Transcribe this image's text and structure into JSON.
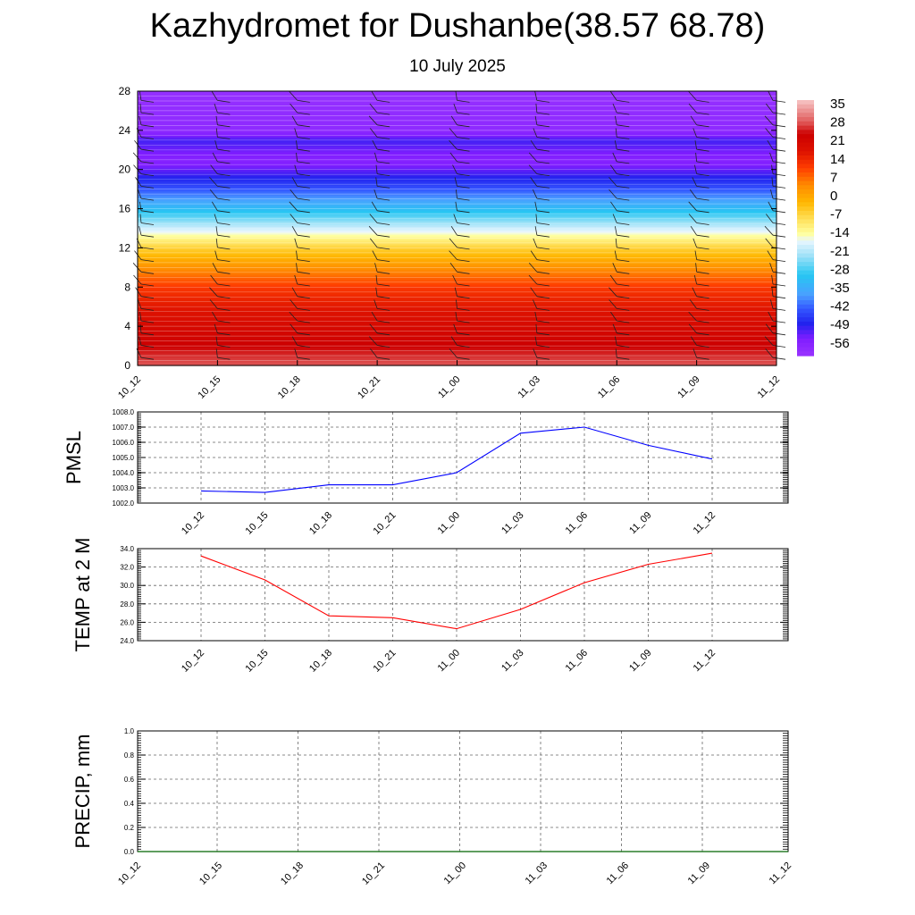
{
  "header": {
    "title": "Kazhydromet for Dushanbe(38.57 68.78)",
    "subtitle": "10 July 2025"
  },
  "chart_data": [
    {
      "type": "heatmap",
      "name": "temperature-cross-section",
      "xlabel": "",
      "ylabel": "",
      "x_ticks": [
        "10_12",
        "10_15",
        "10_18",
        "10_21",
        "11_00",
        "11_03",
        "11_06",
        "11_09",
        "11_12"
      ],
      "y_ticks": [
        "0",
        "4",
        "8",
        "12",
        "16",
        "20",
        "24",
        "28"
      ],
      "ylim": [
        0,
        28
      ],
      "colorbar": {
        "labels": [
          "35",
          "28",
          "21",
          "14",
          "7",
          "0",
          "-7",
          "-14",
          "-21",
          "-28",
          "-35",
          "-42",
          "-49",
          "-56"
        ],
        "range": [
          -63,
          42
        ]
      },
      "profile": {
        "heights": [
          0,
          2,
          4,
          6,
          8,
          10,
          12,
          13,
          14,
          16,
          18,
          20,
          21,
          22,
          23,
          24,
          28
        ],
        "temps": [
          33,
          28,
          24,
          20,
          15,
          6,
          -4,
          -11,
          -18,
          -32,
          -44,
          -54,
          -58,
          -55,
          -52,
          -60,
          -62
        ]
      },
      "wind_barbs": true
    },
    {
      "type": "line",
      "name": "pmsl",
      "ylabel": "PMSL",
      "ylim": [
        1002.0,
        1008.0
      ],
      "y_ticks": [
        "1002.0",
        "1003.0",
        "1004.0",
        "1005.0",
        "1006.0",
        "1007.0",
        "1008.0"
      ],
      "categories": [
        "10_12",
        "10_15",
        "10_18",
        "10_21",
        "11_00",
        "11_03",
        "11_06",
        "11_09",
        "11_12"
      ],
      "values": [
        1002.8,
        1002.7,
        1003.2,
        1003.2,
        1004.0,
        1006.6,
        1007.0,
        1005.8,
        1004.9
      ],
      "color": "#0000ff"
    },
    {
      "type": "line",
      "name": "temp-2m",
      "ylabel": "TEMP at 2 M",
      "ylim": [
        24.0,
        34.0
      ],
      "y_ticks": [
        "24.0",
        "26.0",
        "28.0",
        "30.0",
        "32.0",
        "34.0"
      ],
      "categories": [
        "10_12",
        "10_15",
        "10_18",
        "10_21",
        "11_00",
        "11_03",
        "11_06",
        "11_09",
        "11_12"
      ],
      "values": [
        33.2,
        30.6,
        26.7,
        26.5,
        25.3,
        27.4,
        30.3,
        32.3,
        33.5
      ],
      "color": "#ff0000"
    },
    {
      "type": "line",
      "name": "precip",
      "ylabel": "PRECIP, mm",
      "ylim": [
        0.0,
        1.0
      ],
      "y_ticks": [
        "0.0",
        "0.2",
        "0.4",
        "0.6",
        "0.8",
        "1.0"
      ],
      "categories": [
        "10_12",
        "10_15",
        "10_18",
        "10_21",
        "11_00",
        "11_03",
        "11_06",
        "11_09",
        "11_12"
      ],
      "values": [
        0,
        0,
        0,
        0,
        0,
        0,
        0,
        0,
        0
      ],
      "color": "#006400"
    }
  ]
}
